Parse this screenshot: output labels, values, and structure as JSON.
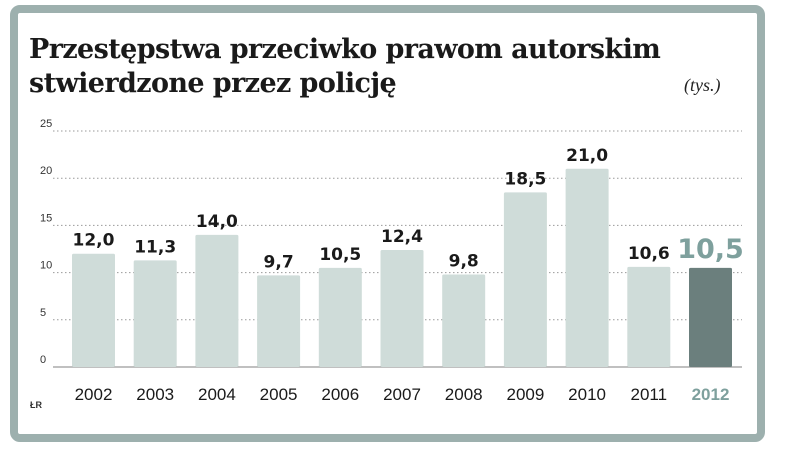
{
  "chart_data": {
    "type": "bar",
    "title": "Przestępstwa przeciwko prawom autorskim stwierdzone przez policję",
    "unit": "(tys.)",
    "source": "ŁR",
    "categories": [
      "2002",
      "2003",
      "2004",
      "2005",
      "2006",
      "2007",
      "2008",
      "2009",
      "2010",
      "2011",
      "2012"
    ],
    "values": [
      12.0,
      11.3,
      14.0,
      9.7,
      10.5,
      12.4,
      9.8,
      18.5,
      21.0,
      10.6,
      10.5
    ],
    "value_labels": [
      "12,0",
      "11,3",
      "14,0",
      "9,7",
      "10,5",
      "12,4",
      "9,8",
      "18,5",
      "21,0",
      "10,6",
      "10,5"
    ],
    "highlight_index": 10,
    "yticks": [
      0,
      5,
      10,
      15,
      20,
      25
    ],
    "ylim": [
      0,
      25
    ],
    "grid": "dotted-horizontal",
    "colors": {
      "bar": "#cfdcd9",
      "bar_highlight": "#6b7f7d",
      "frame": "#9db0ae",
      "highlight_text": "#7ea09d"
    }
  }
}
